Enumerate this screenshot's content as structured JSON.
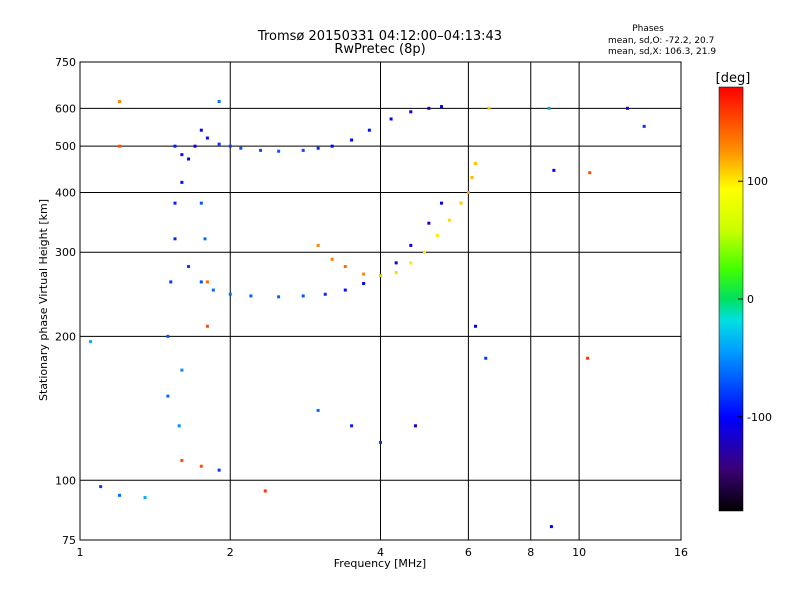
{
  "chart_data": {
    "type": "scatter",
    "title": "Tromsø 20150331 04:12:00–04:13:43",
    "subtitle": "RwPretec (8p)",
    "xlabel": "Frequency [MHz]",
    "ylabel": "Stationary phase Virtual Height [km]",
    "xscale": "log",
    "yscale": "log",
    "xlim": [
      1,
      16
    ],
    "ylim": [
      75,
      750
    ],
    "xticks": [
      "1",
      "2",
      "4",
      "6",
      "8",
      "10",
      "16"
    ],
    "yticks": [
      "75",
      "100",
      "200",
      "300",
      "400",
      "500",
      "600",
      "750"
    ],
    "grid": true,
    "legend": {
      "title": "Phases",
      "lines": [
        "mean, sd,O: -72.2, 20.7",
        "mean, sd,X: 106.3, 21.9"
      ]
    },
    "colorbar": {
      "label": "[deg]",
      "range": [
        -180,
        180
      ],
      "ticks": [
        "100",
        "0",
        "-100"
      ]
    },
    "series": [
      {
        "description": "O-mode F-layer trace (upper)",
        "points": [
          [
            1.55,
            500,
            -90
          ],
          [
            1.6,
            480,
            -95
          ],
          [
            1.65,
            470,
            -100
          ],
          [
            1.7,
            500,
            -110
          ],
          [
            1.75,
            540,
            -105
          ],
          [
            1.8,
            520,
            -95
          ],
          [
            1.9,
            505,
            -80
          ],
          [
            2.0,
            500,
            -75
          ],
          [
            2.1,
            495,
            -70
          ],
          [
            2.3,
            490,
            -72
          ],
          [
            2.5,
            488,
            -68
          ],
          [
            2.8,
            490,
            -75
          ],
          [
            3.0,
            495,
            -85
          ],
          [
            3.2,
            500,
            -100
          ],
          [
            3.5,
            515,
            -100
          ],
          [
            3.8,
            540,
            -95
          ],
          [
            4.2,
            570,
            -100
          ],
          [
            4.6,
            590,
            -105
          ],
          [
            5.0,
            600,
            -110
          ],
          [
            5.3,
            605,
            -100
          ]
        ]
      },
      {
        "description": "O-mode F-layer trace (lower cusp)",
        "points": [
          [
            1.65,
            280,
            -80
          ],
          [
            1.75,
            260,
            -70
          ],
          [
            1.85,
            250,
            -60
          ],
          [
            2.0,
            245,
            -60
          ],
          [
            2.2,
            243,
            -65
          ],
          [
            2.5,
            242,
            -65
          ],
          [
            2.8,
            243,
            -70
          ],
          [
            3.1,
            245,
            -85
          ],
          [
            3.4,
            250,
            -95
          ],
          [
            3.7,
            258,
            -100
          ],
          [
            4.0,
            268,
            -100
          ],
          [
            4.3,
            285,
            -105
          ],
          [
            4.6,
            310,
            -110
          ],
          [
            5.0,
            345,
            -110
          ],
          [
            5.3,
            380,
            -105
          ]
        ]
      },
      {
        "description": "X-mode trace",
        "points": [
          [
            3.0,
            310,
            130
          ],
          [
            3.2,
            290,
            135
          ],
          [
            3.4,
            280,
            140
          ],
          [
            3.7,
            270,
            130
          ],
          [
            4.0,
            268,
            110
          ],
          [
            4.3,
            272,
            105
          ],
          [
            4.6,
            285,
            100
          ],
          [
            4.9,
            300,
            100
          ],
          [
            5.2,
            325,
            100
          ],
          [
            5.5,
            350,
            105
          ],
          [
            5.8,
            380,
            110
          ],
          [
            6.0,
            400,
            120
          ],
          [
            6.1,
            430,
            115
          ],
          [
            6.2,
            460,
            110
          ]
        ]
      },
      {
        "description": "Low-frequency vertical trace near 1.5–1.9 MHz",
        "points": [
          [
            1.5,
            150,
            -60
          ],
          [
            1.5,
            200,
            -70
          ],
          [
            1.52,
            260,
            -80
          ],
          [
            1.55,
            320,
            -85
          ],
          [
            1.55,
            380,
            -90
          ],
          [
            1.6,
            420,
            -95
          ],
          [
            1.75,
            380,
            -70
          ],
          [
            1.78,
            320,
            -60
          ],
          [
            1.8,
            260,
            140
          ],
          [
            1.8,
            210,
            150
          ],
          [
            1.6,
            170,
            -50
          ],
          [
            1.58,
            130,
            -50
          ]
        ]
      },
      {
        "description": "Sporadic scattered echoes",
        "points": [
          [
            1.05,
            195,
            -40
          ],
          [
            1.1,
            97,
            -80
          ],
          [
            1.2,
            93,
            -60
          ],
          [
            1.35,
            92,
            -40
          ],
          [
            1.6,
            110,
            150
          ],
          [
            1.75,
            107,
            150
          ],
          [
            1.9,
            105,
            -80
          ],
          [
            2.35,
            95,
            160
          ],
          [
            1.2,
            620,
            130
          ],
          [
            1.2,
            500,
            150
          ],
          [
            1.9,
            620,
            -60
          ],
          [
            3.0,
            140,
            -60
          ],
          [
            3.5,
            130,
            -90
          ],
          [
            4.0,
            120,
            -80
          ],
          [
            4.7,
            130,
            -110
          ],
          [
            6.2,
            210,
            -100
          ],
          [
            6.5,
            180,
            -80
          ],
          [
            8.8,
            80,
            -100
          ],
          [
            8.9,
            445,
            -100
          ],
          [
            8.7,
            600,
            -40
          ],
          [
            10.5,
            440,
            150
          ],
          [
            10.4,
            180,
            160
          ],
          [
            13.5,
            550,
            -80
          ],
          [
            6.6,
            600,
            110
          ],
          [
            12.5,
            600,
            -120
          ]
        ]
      }
    ]
  }
}
